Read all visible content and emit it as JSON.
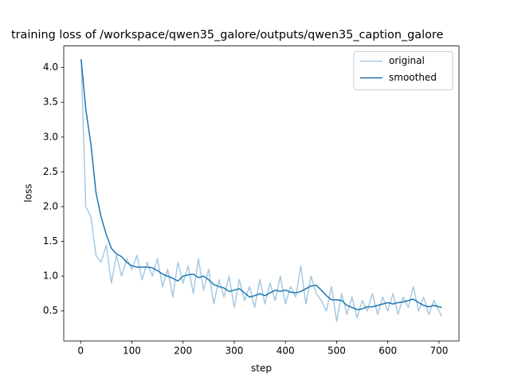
{
  "chart_data": {
    "type": "line",
    "title": "training loss of /workspace/qwen35_galore/outputs/qwen35_caption_galore",
    "xlabel": "step",
    "ylabel": "loss",
    "x": [
      1,
      10,
      20,
      30,
      40,
      50,
      60,
      70,
      80,
      90,
      100,
      110,
      120,
      130,
      140,
      150,
      160,
      170,
      180,
      190,
      200,
      210,
      220,
      230,
      240,
      250,
      260,
      270,
      280,
      290,
      300,
      310,
      320,
      330,
      340,
      350,
      360,
      370,
      380,
      390,
      400,
      410,
      420,
      430,
      440,
      450,
      460,
      470,
      480,
      490,
      500,
      510,
      520,
      530,
      540,
      550,
      560,
      570,
      580,
      590,
      600,
      610,
      620,
      630,
      640,
      650,
      660,
      670,
      680,
      690,
      700,
      705
    ],
    "series": [
      {
        "name": "original",
        "color": "#a6c9e2",
        "values": [
          4.12,
          2.0,
          1.85,
          1.3,
          1.2,
          1.45,
          0.9,
          1.3,
          1.0,
          1.25,
          1.1,
          1.3,
          0.95,
          1.2,
          1.0,
          1.25,
          0.85,
          1.1,
          0.7,
          1.2,
          0.9,
          1.15,
          0.75,
          1.25,
          0.8,
          1.1,
          0.6,
          0.95,
          0.7,
          1.0,
          0.55,
          0.95,
          0.65,
          0.85,
          0.55,
          0.95,
          0.6,
          0.9,
          0.65,
          1.0,
          0.6,
          0.85,
          0.7,
          1.15,
          0.6,
          1.0,
          0.75,
          0.65,
          0.5,
          0.85,
          0.35,
          0.75,
          0.45,
          0.7,
          0.4,
          0.65,
          0.5,
          0.75,
          0.45,
          0.7,
          0.5,
          0.75,
          0.45,
          0.7,
          0.55,
          0.85,
          0.5,
          0.7,
          0.45,
          0.65,
          0.5,
          0.42
        ]
      },
      {
        "name": "smoothed",
        "color": "#1f77b4",
        "values": [
          4.12,
          3.4,
          2.9,
          2.2,
          1.85,
          1.6,
          1.4,
          1.32,
          1.28,
          1.2,
          1.15,
          1.13,
          1.13,
          1.13,
          1.12,
          1.08,
          1.03,
          1.0,
          0.97,
          0.93,
          1.0,
          1.02,
          1.03,
          0.98,
          1.0,
          0.95,
          0.88,
          0.85,
          0.83,
          0.78,
          0.8,
          0.82,
          0.76,
          0.7,
          0.72,
          0.75,
          0.72,
          0.76,
          0.8,
          0.78,
          0.8,
          0.77,
          0.76,
          0.78,
          0.82,
          0.86,
          0.87,
          0.8,
          0.72,
          0.66,
          0.66,
          0.65,
          0.58,
          0.55,
          0.52,
          0.53,
          0.56,
          0.56,
          0.58,
          0.6,
          0.62,
          0.6,
          0.62,
          0.63,
          0.65,
          0.67,
          0.62,
          0.58,
          0.56,
          0.58,
          0.56,
          0.55
        ]
      }
    ],
    "xlim": [
      -33,
      739
    ],
    "xticks": [
      0,
      100,
      200,
      300,
      400,
      500,
      600,
      700
    ],
    "ylim": [
      0.07,
      4.31
    ],
    "yticks": [
      0.5,
      {
        "value": 1,
        "label": "1.0"
      },
      1.5,
      {
        "value": 2,
        "label": "2.0"
      },
      2.5,
      {
        "value": 3,
        "label": "3.0"
      },
      3.5,
      {
        "value": 4,
        "label": "4.0"
      }
    ],
    "legend": "upper right",
    "grid": false
  }
}
